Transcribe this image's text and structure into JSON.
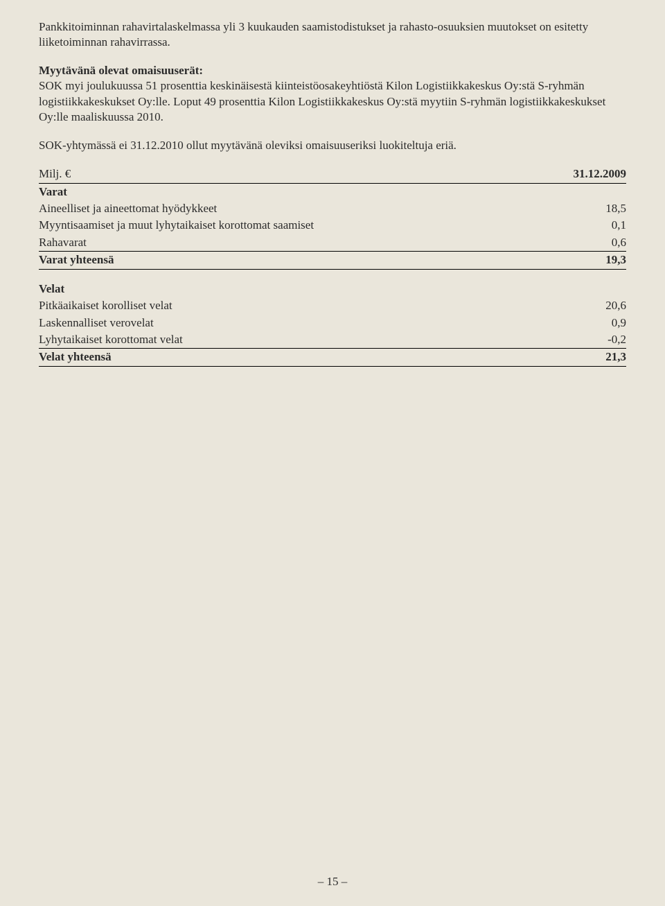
{
  "page_bg": "#eae6db",
  "text_color": "#2b2b2b",
  "paragraphs": {
    "p1": "Pankkitoiminnan rahavirtalaskelmassa yli 3 kuukauden saamistodistukset ja rahasto-osuuksien muutokset on esitetty liiketoiminnan rahavirrassa.",
    "p2_heading": "Myytävänä olevat omaisuuserät:",
    "p2_body": "SOK myi joulukuussa 51 prosenttia keskinäisestä kiinteistöosakeyhtiöstä Kilon Logistiikkakeskus Oy:stä S-ryhmän logistiikkakeskukset Oy:lle. Loput 49 prosenttia Kilon Logistiikkakeskus Oy:stä myytiin S-ryhmän logistiikkakeskukset Oy:lle maaliskuussa 2010.",
    "p3": "SOK-yhtymässä ei 31.12.2010 ollut myytävänä oleviksi omaisuuseriksi luokiteltuja eriä."
  },
  "table": {
    "header_left": "Milj. €",
    "header_right": "31.12.2009",
    "varat_heading": "Varat",
    "varat_rows": [
      {
        "label": "Aineelliset ja aineettomat hyödykkeet",
        "value": "18,5"
      },
      {
        "label": "Myyntisaamiset ja muut lyhytaikaiset korottomat saamiset",
        "value": "0,1"
      },
      {
        "label": "Rahavarat",
        "value": "0,6"
      }
    ],
    "varat_total_label": "Varat yhteensä",
    "varat_total_value": "19,3",
    "velat_heading": "Velat",
    "velat_rows": [
      {
        "label": "Pitkäaikaiset korolliset velat",
        "value": "20,6"
      },
      {
        "label": "Laskennalliset verovelat",
        "value": "0,9"
      },
      {
        "label": "Lyhytaikaiset korottomat velat",
        "value": "-0,2"
      }
    ],
    "velat_total_label": "Velat yhteensä",
    "velat_total_value": "21,3"
  },
  "page_number": "– 15 –"
}
